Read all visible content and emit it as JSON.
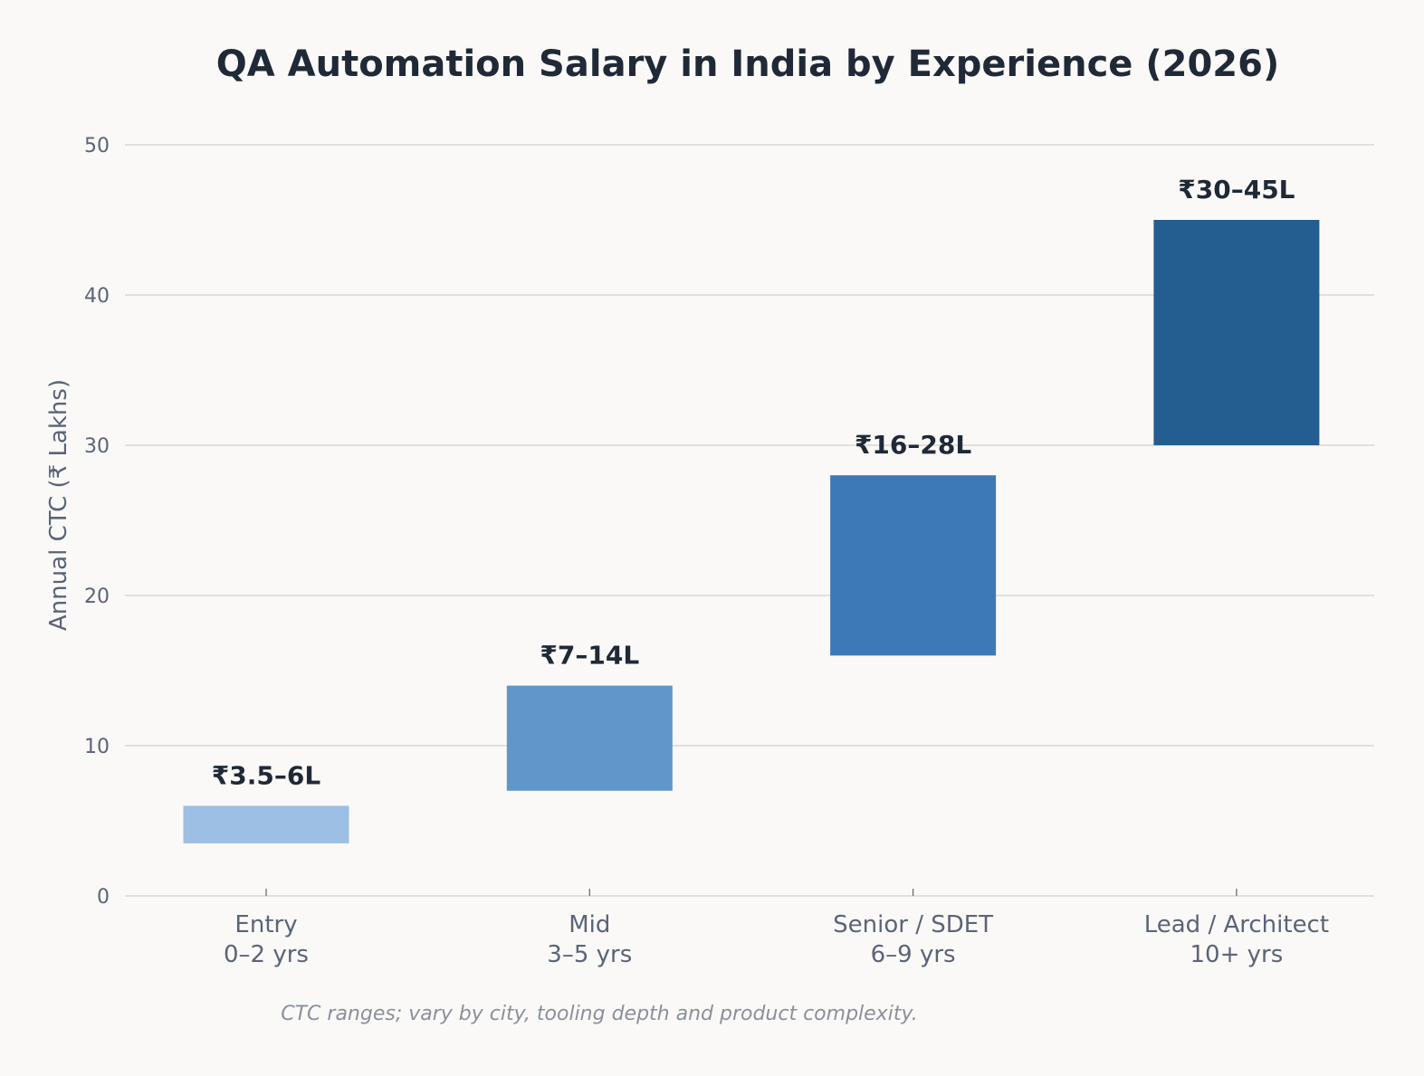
{
  "chart_data": {
    "type": "bar",
    "title": "QA Automation Salary in India by Experience (2026)",
    "ylabel": "Annual CTC  (₹ Lakhs)",
    "xlabel": "",
    "ylim": [
      0,
      52
    ],
    "yticks": [
      0,
      10,
      20,
      30,
      40,
      50
    ],
    "grid": true,
    "categories": [
      {
        "line1": "Entry",
        "line2": "0–2 yrs"
      },
      {
        "line1": "Mid",
        "line2": "3–5 yrs"
      },
      {
        "line1": "Senior / SDET",
        "line2": "6–9 yrs"
      },
      {
        "line1": "Lead / Architect",
        "line2": "10+ yrs"
      }
    ],
    "ranges": [
      {
        "low": 3.5,
        "high": 6,
        "label": "₹3.5–6L",
        "color": "#9dbfe3"
      },
      {
        "low": 7,
        "high": 14,
        "label": "₹7–14L",
        "color": "#5f97cb"
      },
      {
        "low": 16,
        "high": 28,
        "label": "₹16–28L",
        "color": "#3d7ab5"
      },
      {
        "low": 30,
        "high": 45,
        "label": "₹30–45L",
        "color": "#245d8f"
      }
    ],
    "note": "CTC ranges; vary by city, tooling depth and product complexity."
  }
}
